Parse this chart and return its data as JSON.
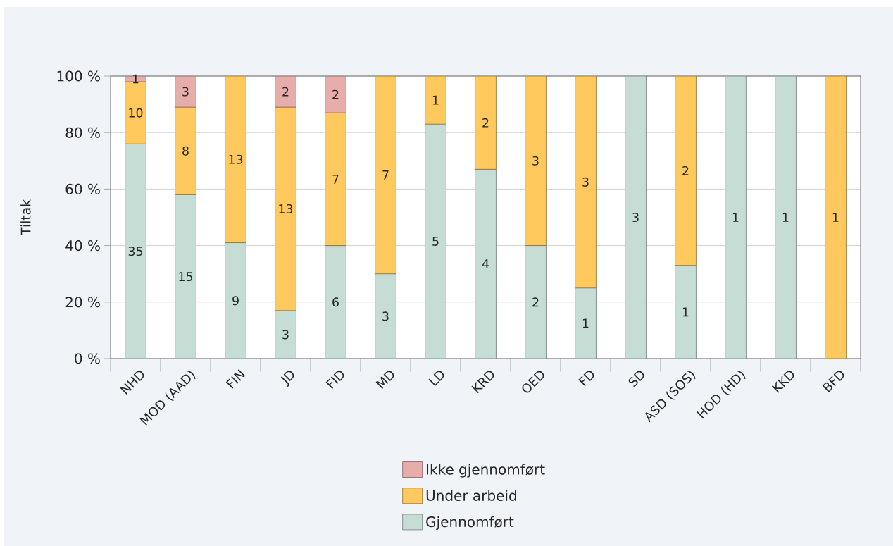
{
  "chart_data": {
    "type": "bar",
    "stacked": true,
    "ylabel": "Tiltak",
    "categories": [
      "NHD",
      "MOD (AAD)",
      "FIN",
      "JD",
      "FID",
      "MD",
      "LD",
      "KRD",
      "OED",
      "FD",
      "SD",
      "ASD (SOS)",
      "HOD (HD)",
      "KKD",
      "BFD"
    ],
    "series": [
      {
        "name": "Gjennomført",
        "color": "#c6ddd6",
        "values": [
          76,
          58,
          41,
          17,
          40,
          30,
          83,
          67,
          40,
          25,
          100,
          33,
          100,
          100,
          0
        ]
      },
      {
        "name": "Under arbeid",
        "color": "#ffc95e",
        "values": [
          22,
          31,
          59,
          72,
          47,
          70,
          17,
          33,
          60,
          75,
          0,
          67,
          0,
          0,
          100
        ]
      },
      {
        "name": "Ikke gjennomført",
        "color": "#e6adab",
        "values": [
          2,
          11,
          0,
          11,
          13,
          0,
          0,
          0,
          0,
          0,
          0,
          0,
          0,
          0,
          0
        ]
      }
    ],
    "annotations": [
      "35",
      "10",
      "1",
      "15",
      "8",
      "3",
      "9",
      "13",
      "3",
      "13",
      "2",
      "6",
      "7",
      "2",
      "3",
      "7",
      "5",
      "1",
      "4",
      "2",
      "2",
      "3",
      "1",
      "3",
      "3",
      "1",
      "2",
      "1",
      "1",
      "1"
    ],
    "ylim": [
      0,
      100
    ],
    "yticks": [
      {
        "value": 0,
        "label": "0 %"
      },
      {
        "value": 20,
        "label": "20 %"
      },
      {
        "value": 40,
        "label": "40 %"
      },
      {
        "value": 60,
        "label": "60 %"
      },
      {
        "value": 80,
        "label": "80 %"
      },
      {
        "value": 100,
        "label": "100 %"
      }
    ],
    "grid": "y",
    "legend": "bottom"
  }
}
